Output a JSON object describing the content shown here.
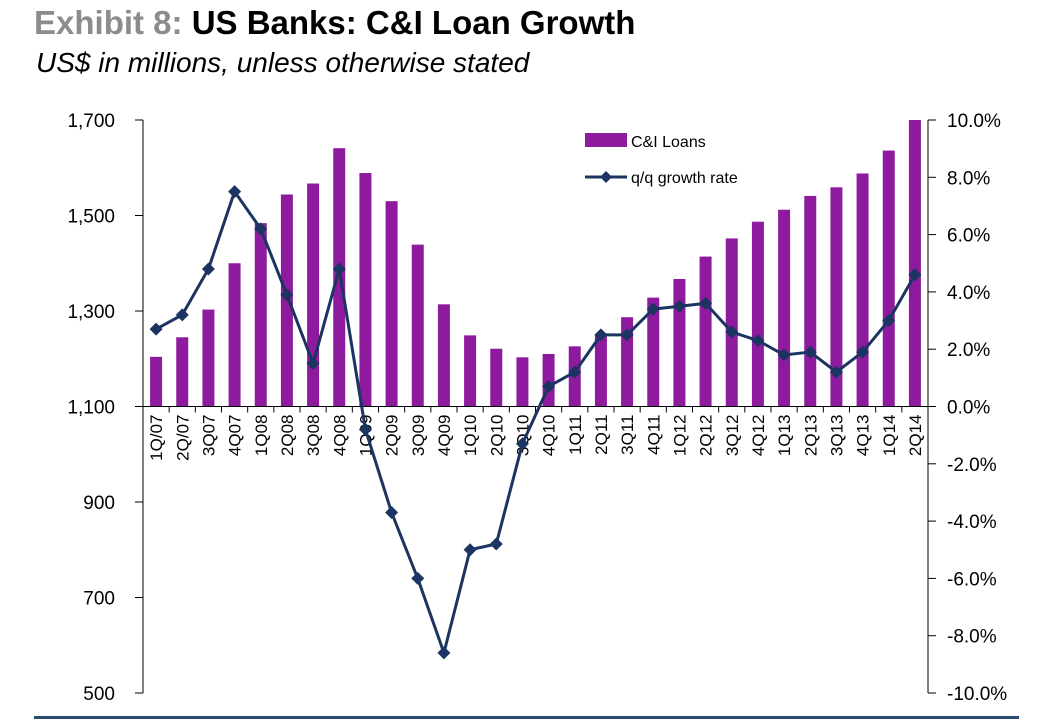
{
  "header": {
    "exhibit_label": "Exhibit 8:",
    "title": "US Banks: C&I Loan Growth",
    "subtitle": "US$ in millions, unless otherwise stated"
  },
  "colors": {
    "bar": "#8e1b9e",
    "line": "#1c3461",
    "axis": "#000000",
    "rule": "#2b4a6f"
  },
  "chart_data": {
    "type": "bar",
    "title": "US Banks: C&I Loan Growth",
    "categories": [
      "1Q/07",
      "2Q/07",
      "3Q07",
      "4Q07",
      "1Q08",
      "2Q08",
      "3Q08",
      "4Q08",
      "1Q09",
      "2Q09",
      "3Q09",
      "4Q09",
      "1Q10",
      "2Q10",
      "3Q10",
      "4Q10",
      "1Q11",
      "2Q11",
      "3Q11",
      "4Q11",
      "1Q12",
      "2Q12",
      "3Q12",
      "4Q12",
      "1Q13",
      "2Q13",
      "3Q13",
      "4Q13",
      "1Q14",
      "2Q14"
    ],
    "series": [
      {
        "name": "C&I Loans",
        "type": "bar",
        "axis": "left",
        "values": [
          1204,
          1245,
          1303,
          1400,
          1484,
          1544,
          1567,
          1641,
          1589,
          1530,
          1439,
          1314,
          1249,
          1221,
          1203,
          1210,
          1226,
          1250,
          1287,
          1328,
          1367,
          1414,
          1452,
          1487,
          1512,
          1541,
          1559,
          1588,
          1636,
          1700
        ]
      },
      {
        "name": "q/q growth rate",
        "type": "line",
        "axis": "right",
        "values": [
          2.7,
          3.2,
          4.8,
          7.5,
          6.2,
          3.9,
          1.5,
          4.8,
          -0.8,
          -3.7,
          -6.0,
          -8.6,
          -5.0,
          -4.8,
          -1.3,
          0.7,
          1.2,
          2.5,
          2.5,
          3.4,
          3.5,
          3.6,
          2.6,
          2.3,
          1.8,
          1.9,
          1.2,
          1.9,
          3.0,
          4.6
        ]
      }
    ],
    "y_left": {
      "ylim": [
        500,
        1700
      ],
      "ticks": [
        500,
        700,
        900,
        1100,
        1300,
        1500,
        1700
      ],
      "tick_labels": [
        "500",
        "700",
        "900",
        "1,100",
        "1,300",
        "1,500",
        "1,700"
      ]
    },
    "y_right": {
      "ylim": [
        -10.0,
        10.0
      ],
      "ticks": [
        -10,
        -8,
        -6,
        -4,
        -2,
        0,
        2,
        4,
        6,
        8,
        10
      ],
      "tick_labels": [
        "-10.0%",
        "-8.0%",
        "-6.0%",
        "-4.0%",
        "-2.0%",
        "0.0%",
        "2.0%",
        "4.0%",
        "6.0%",
        "8.0%",
        "10.0%"
      ]
    },
    "bar_baseline": 1100,
    "legend": {
      "placement": "top-right",
      "entries": [
        "C&I Loans",
        "q/q growth rate"
      ]
    },
    "grid": false
  }
}
